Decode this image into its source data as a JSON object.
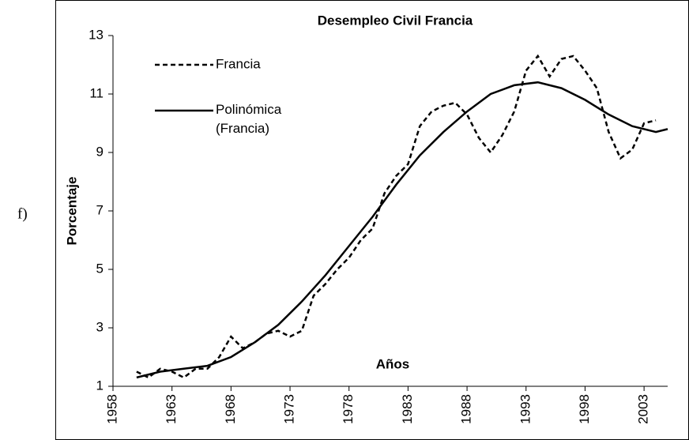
{
  "chart_data": {
    "type": "line",
    "title": "Desempleo Civil Francia",
    "y_label": "Porcentaje",
    "annotation": "Años",
    "panel_label": "f)",
    "xlim": [
      1958,
      2005
    ],
    "xticks": [
      1958,
      1963,
      1968,
      1973,
      1978,
      1983,
      1988,
      1993,
      1998,
      2003
    ],
    "ylim": [
      1,
      13
    ],
    "yticks": [
      1,
      3,
      5,
      7,
      9,
      11,
      13
    ],
    "legend": "upper left",
    "series": [
      {
        "name": "Francia",
        "color": "#000000",
        "dash": true,
        "x": [
          1960,
          1961,
          1962,
          1963,
          1964,
          1965,
          1966,
          1967,
          1968,
          1969,
          1970,
          1971,
          1972,
          1973,
          1974,
          1975,
          1976,
          1977,
          1978,
          1979,
          1980,
          1981,
          1982,
          1983,
          1984,
          1985,
          1986,
          1987,
          1988,
          1989,
          1990,
          1991,
          1992,
          1993,
          1994,
          1995,
          1996,
          1997,
          1998,
          1999,
          2000,
          2001,
          2002,
          2003,
          2004
        ],
        "values": [
          1.5,
          1.3,
          1.6,
          1.5,
          1.3,
          1.6,
          1.6,
          2.0,
          2.7,
          2.3,
          2.5,
          2.8,
          2.9,
          2.7,
          2.9,
          4.1,
          4.5,
          5.0,
          5.4,
          6.0,
          6.4,
          7.6,
          8.2,
          8.6,
          9.9,
          10.4,
          10.6,
          10.7,
          10.3,
          9.5,
          9.0,
          9.6,
          10.4,
          11.8,
          12.3,
          11.6,
          12.2,
          12.3,
          11.8,
          11.2,
          9.7,
          8.8,
          9.1,
          10.0,
          10.1
        ]
      },
      {
        "name": "Polinómica (Francia)",
        "color": "#000000",
        "dash": false,
        "x": [
          1960,
          1962,
          1964,
          1966,
          1968,
          1970,
          1972,
          1974,
          1976,
          1978,
          1980,
          1982,
          1984,
          1986,
          1988,
          1990,
          1992,
          1994,
          1996,
          1998,
          2000,
          2002,
          2004,
          2005
        ],
        "values": [
          1.3,
          1.5,
          1.6,
          1.7,
          2.0,
          2.5,
          3.1,
          3.9,
          4.8,
          5.8,
          6.8,
          7.9,
          8.9,
          9.7,
          10.4,
          11.0,
          11.3,
          11.4,
          11.2,
          10.8,
          10.3,
          9.9,
          9.7,
          9.8
        ]
      }
    ]
  }
}
